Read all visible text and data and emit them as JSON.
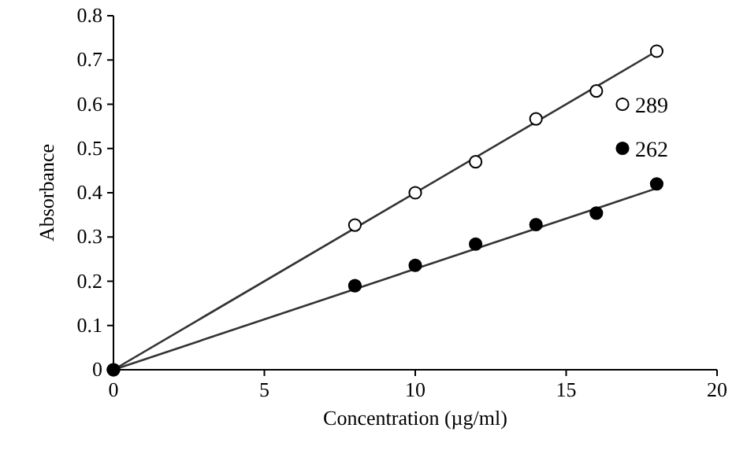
{
  "chart_data": {
    "type": "scatter",
    "xlabel": "Concentration (µg/ml)",
    "ylabel": "Absorbance",
    "xlim": [
      0,
      20
    ],
    "xticks": [
      0,
      5,
      10,
      15,
      20
    ],
    "ylim": [
      0,
      0.8
    ],
    "yticks": [
      0,
      0.1,
      0.2,
      0.3,
      0.4,
      0.5,
      0.6,
      0.7,
      0.8
    ],
    "grid": false,
    "legend": "right",
    "marker": "circle",
    "series": [
      {
        "name": "289",
        "color": "#000000",
        "x": [
          0,
          8,
          10,
          12,
          14,
          16,
          18
        ],
        "values": [
          0,
          0.327,
          0.4,
          0.47,
          0.567,
          0.63,
          0.72
        ]
      },
      {
        "name": "262",
        "color": "#000000",
        "x": [
          0,
          8,
          10,
          12,
          14,
          16,
          18
        ],
        "values": [
          0,
          0.19,
          0.236,
          0.284,
          0.328,
          0.354,
          0.42
        ]
      },
      {
        "type": "line",
        "color": "#333333",
        "marker": "none",
        "line_style": "solid",
        "x": [
          0,
          18
        ],
        "values": [
          0,
          0.72
        ]
      },
      {
        "type": "line",
        "color": "#333333",
        "marker": "none",
        "line_style": "solid",
        "x": [
          0,
          18
        ],
        "values": [
          0,
          0.41
        ]
      }
    ]
  }
}
